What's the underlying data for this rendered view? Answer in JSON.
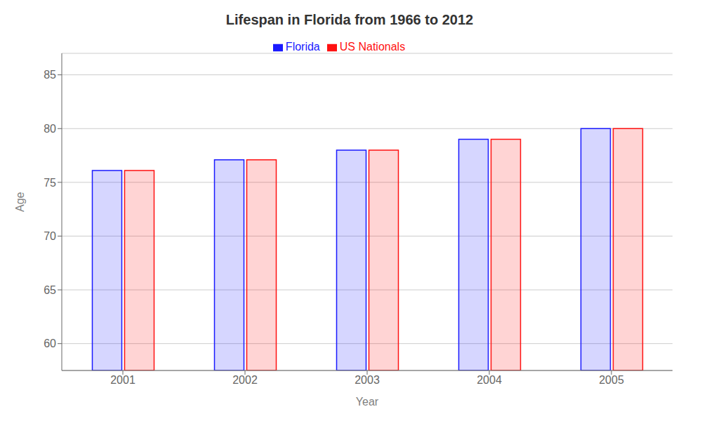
{
  "chart_data": {
    "type": "bar",
    "title": "Lifespan in Florida from 1966 to 2012",
    "x_label": "Year",
    "y_label": "Age",
    "categories": [
      "2001",
      "2002",
      "2003",
      "2004",
      "2005"
    ],
    "series": [
      {
        "name": "Florida",
        "color": "#1a1aff",
        "values": [
          76.1,
          77.1,
          78.0,
          79.0,
          80.0
        ]
      },
      {
        "name": "US Nationals",
        "color": "#ff1111",
        "values": [
          76.1,
          77.1,
          78.0,
          79.0,
          80.0
        ]
      }
    ],
    "ylim": [
      57.5,
      87
    ],
    "yticks": [
      60,
      65,
      70,
      75,
      80,
      85
    ],
    "grid": true,
    "legend": "top"
  }
}
